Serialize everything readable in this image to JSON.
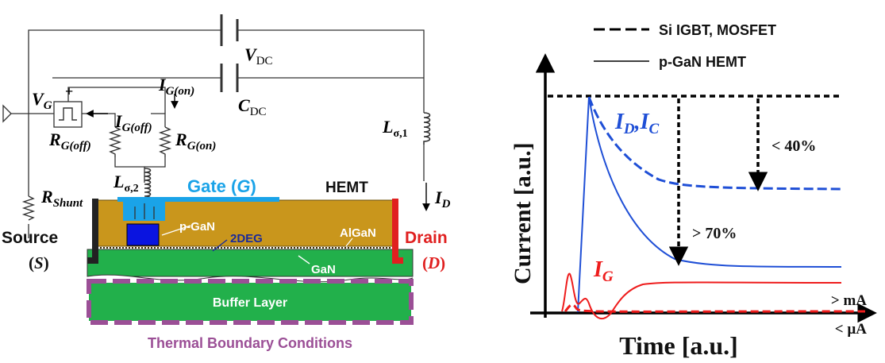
{
  "left": {
    "labels": {
      "vg_main": "V",
      "vg_sub": "G",
      "plus": "+",
      "igon_main": "I",
      "igon_sub": "G(on)",
      "igoff_main": "I",
      "igoff_sub": "G(off)",
      "rgoff_main": "R",
      "rgoff_sub": "G(off)",
      "rgon_main": "R",
      "rgon_sub": "G(on)",
      "lsig2_main": "L",
      "lsig2_sub": "σ,2",
      "lsig1_main": "L",
      "lsig1_sub": "σ,1",
      "vdc_main": "V",
      "vdc_sub": "DC",
      "cdc_main": "C",
      "cdc_sub": "DC",
      "rshunt_main": "R",
      "rshunt_sub": "Shunt",
      "id_main": "I",
      "id_sub": "D",
      "gate_text": "Gate (",
      "gate_g": "G",
      "gate_close": ")",
      "hemt": "HEMT",
      "pgan": "p-GaN",
      "twodeg": "2DEG",
      "algan": "AlGaN",
      "gan": "GaN",
      "source": "Source",
      "source_sym_open": "(",
      "source_sym": "S",
      "source_sym_close": ")",
      "drain": "Drain",
      "drain_sym_open": "(",
      "drain_sym": "D",
      "drain_sym_close": ")",
      "buffer": "Buffer Layer",
      "thermal": "Thermal Boundary Conditions"
    },
    "colors": {
      "gate": "#1aa3e8",
      "algan": "#c9961c",
      "pgan": "#0a14e0",
      "gan": "#22b04b",
      "drain": "#e02020",
      "thermal": "#9b4f96",
      "contact": "#222222"
    }
  },
  "right": {
    "legend": {
      "dashed": "Si IGBT, MOSFET",
      "solid": "p-GaN HEMT"
    },
    "ylabel": "Current [a.u.]",
    "xlabel": "Time [a.u.]",
    "label_idic": "I",
    "label_idic_d": "D",
    "label_idic_sep": ",I",
    "label_idic_c": "C",
    "label_ig": "I",
    "label_ig_sub": "G",
    "lt40": "< 40%",
    "gt70": "> 70%",
    "gtma": "> mA",
    "ltua": "< µA",
    "colors": {
      "blue": "#1f4fd6",
      "red": "#ee1c1c",
      "black": "#000000"
    }
  }
}
